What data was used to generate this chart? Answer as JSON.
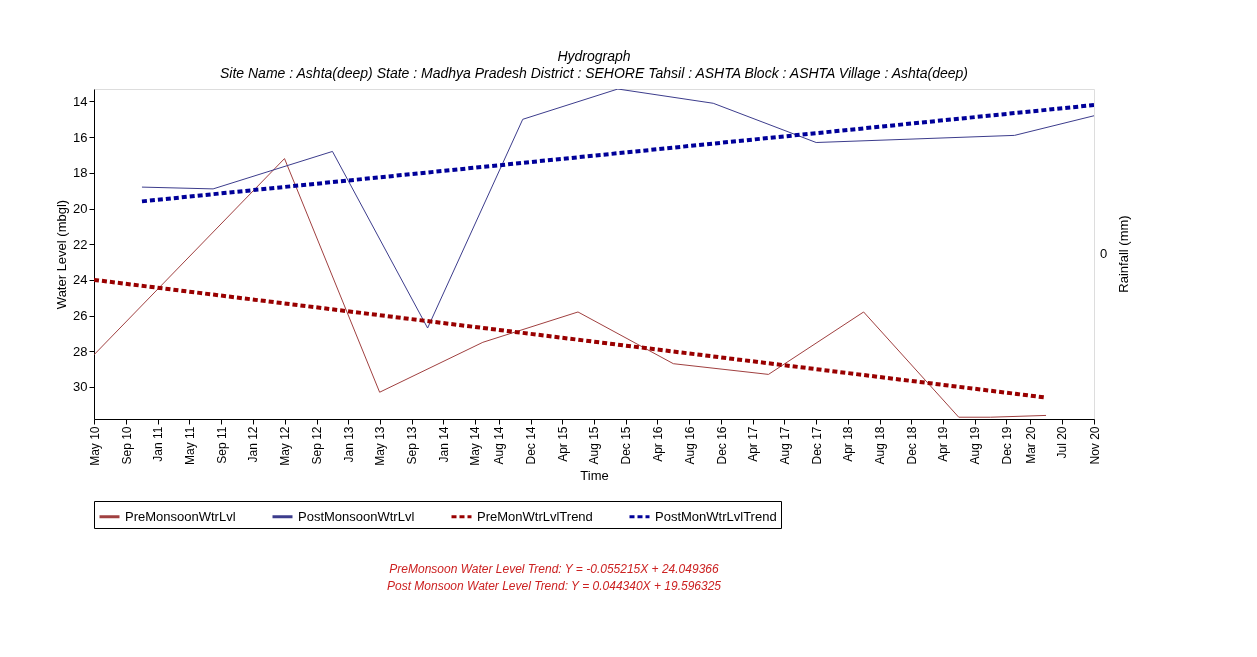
{
  "chart_data": {
    "type": "line",
    "title": "Hydrograph",
    "subtitle": "Site Name : Ashta(deep)  State : Madhya Pradesh District : SEHORE  Tahsil : ASHTA  Block : ASHTA Village : Ashta(deep)",
    "xlabel": "Time",
    "ylabel": "Water Level (mbgl)",
    "y2label": "Rainfall (mm)",
    "xlim": [
      "2010-05-01",
      "2020-11-01"
    ],
    "xticks": [
      {
        "value": "2010-05-01",
        "label": "May 10"
      },
      {
        "value": "2010-09-01",
        "label": "Sep 10"
      },
      {
        "value": "2011-01-01",
        "label": "Jan 11"
      },
      {
        "value": "2011-05-01",
        "label": "May 11"
      },
      {
        "value": "2011-09-01",
        "label": "Sep 11"
      },
      {
        "value": "2012-01-01",
        "label": "Jan 12"
      },
      {
        "value": "2012-05-01",
        "label": "May 12"
      },
      {
        "value": "2012-09-01",
        "label": "Sep 12"
      },
      {
        "value": "2013-01-01",
        "label": "Jan 13"
      },
      {
        "value": "2013-05-01",
        "label": "May 13"
      },
      {
        "value": "2013-09-01",
        "label": "Sep 13"
      },
      {
        "value": "2014-01-01",
        "label": "Jan 14"
      },
      {
        "value": "2014-05-01",
        "label": "May 14"
      },
      {
        "value": "2014-08-01",
        "label": "Aug 14"
      },
      {
        "value": "2014-12-01",
        "label": "Dec 14"
      },
      {
        "value": "2015-04-01",
        "label": "Apr 15"
      },
      {
        "value": "2015-08-01",
        "label": "Aug 15"
      },
      {
        "value": "2015-12-01",
        "label": "Dec 15"
      },
      {
        "value": "2016-04-01",
        "label": "Apr 16"
      },
      {
        "value": "2016-08-01",
        "label": "Aug 16"
      },
      {
        "value": "2016-12-01",
        "label": "Dec 16"
      },
      {
        "value": "2017-04-01",
        "label": "Apr 17"
      },
      {
        "value": "2017-08-01",
        "label": "Aug 17"
      },
      {
        "value": "2017-12-01",
        "label": "Dec 17"
      },
      {
        "value": "2018-04-01",
        "label": "Apr 18"
      },
      {
        "value": "2018-08-01",
        "label": "Aug 18"
      },
      {
        "value": "2018-12-01",
        "label": "Dec 18"
      },
      {
        "value": "2019-04-01",
        "label": "Apr 19"
      },
      {
        "value": "2019-08-01",
        "label": "Aug 19"
      },
      {
        "value": "2019-12-01",
        "label": "Dec 19"
      },
      {
        "value": "2020-03-01",
        "label": "Mar 20"
      },
      {
        "value": "2020-07-01",
        "label": "Jul 20"
      },
      {
        "value": "2020-11-01",
        "label": "Nov 20"
      }
    ],
    "ylim": [
      31.8,
      13.3
    ],
    "yticks": [
      14,
      16,
      18,
      20,
      22,
      24,
      26,
      28,
      30
    ],
    "series": [
      {
        "name": "PreMonsoonWtrLvl",
        "color": "#a04040",
        "line_style": "solid",
        "x": [
          "2010-05",
          "2012-05",
          "2013-05",
          "2014-06",
          "2015-06",
          "2016-06",
          "2017-06",
          "2018-06",
          "2019-06",
          "2019-10",
          "2020-05"
        ],
        "values": [
          28.2,
          17.2,
          30.3,
          27.5,
          25.8,
          28.7,
          29.3,
          25.8,
          31.7,
          31.7,
          31.6
        ]
      },
      {
        "name": "PostMonsoonWtrLvl",
        "color": "#3c3c8c",
        "line_style": "solid",
        "x": [
          "2010-11",
          "2011-08",
          "2012-11",
          "2013-11",
          "2014-11",
          "2015-11",
          "2016-11",
          "2017-12",
          "2020-01",
          "2020-11"
        ],
        "values": [
          18.8,
          18.9,
          16.8,
          26.7,
          15.0,
          13.3,
          14.1,
          16.3,
          15.9,
          14.8
        ]
      },
      {
        "name": "PreMonWtrLvlTrend",
        "color": "#990000",
        "line_style": "dashed",
        "x": [
          "2010-05",
          "2020-05"
        ],
        "values": [
          24.0,
          30.6
        ]
      },
      {
        "name": "PostMonWtrLvlTrend",
        "color": "#000099",
        "line_style": "dashed",
        "x": [
          "2010-11",
          "2020-11"
        ],
        "values": [
          19.6,
          14.2
        ]
      }
    ],
    "legend": "bottom",
    "grid": false,
    "marker": "none",
    "annotations": [
      "0",
      "PreMonsoon Water Level Trend: Y = -0.055215X + 24.049366",
      "Post Monsoon Water Level Trend: Y = 0.044340X + 19.596325"
    ]
  }
}
